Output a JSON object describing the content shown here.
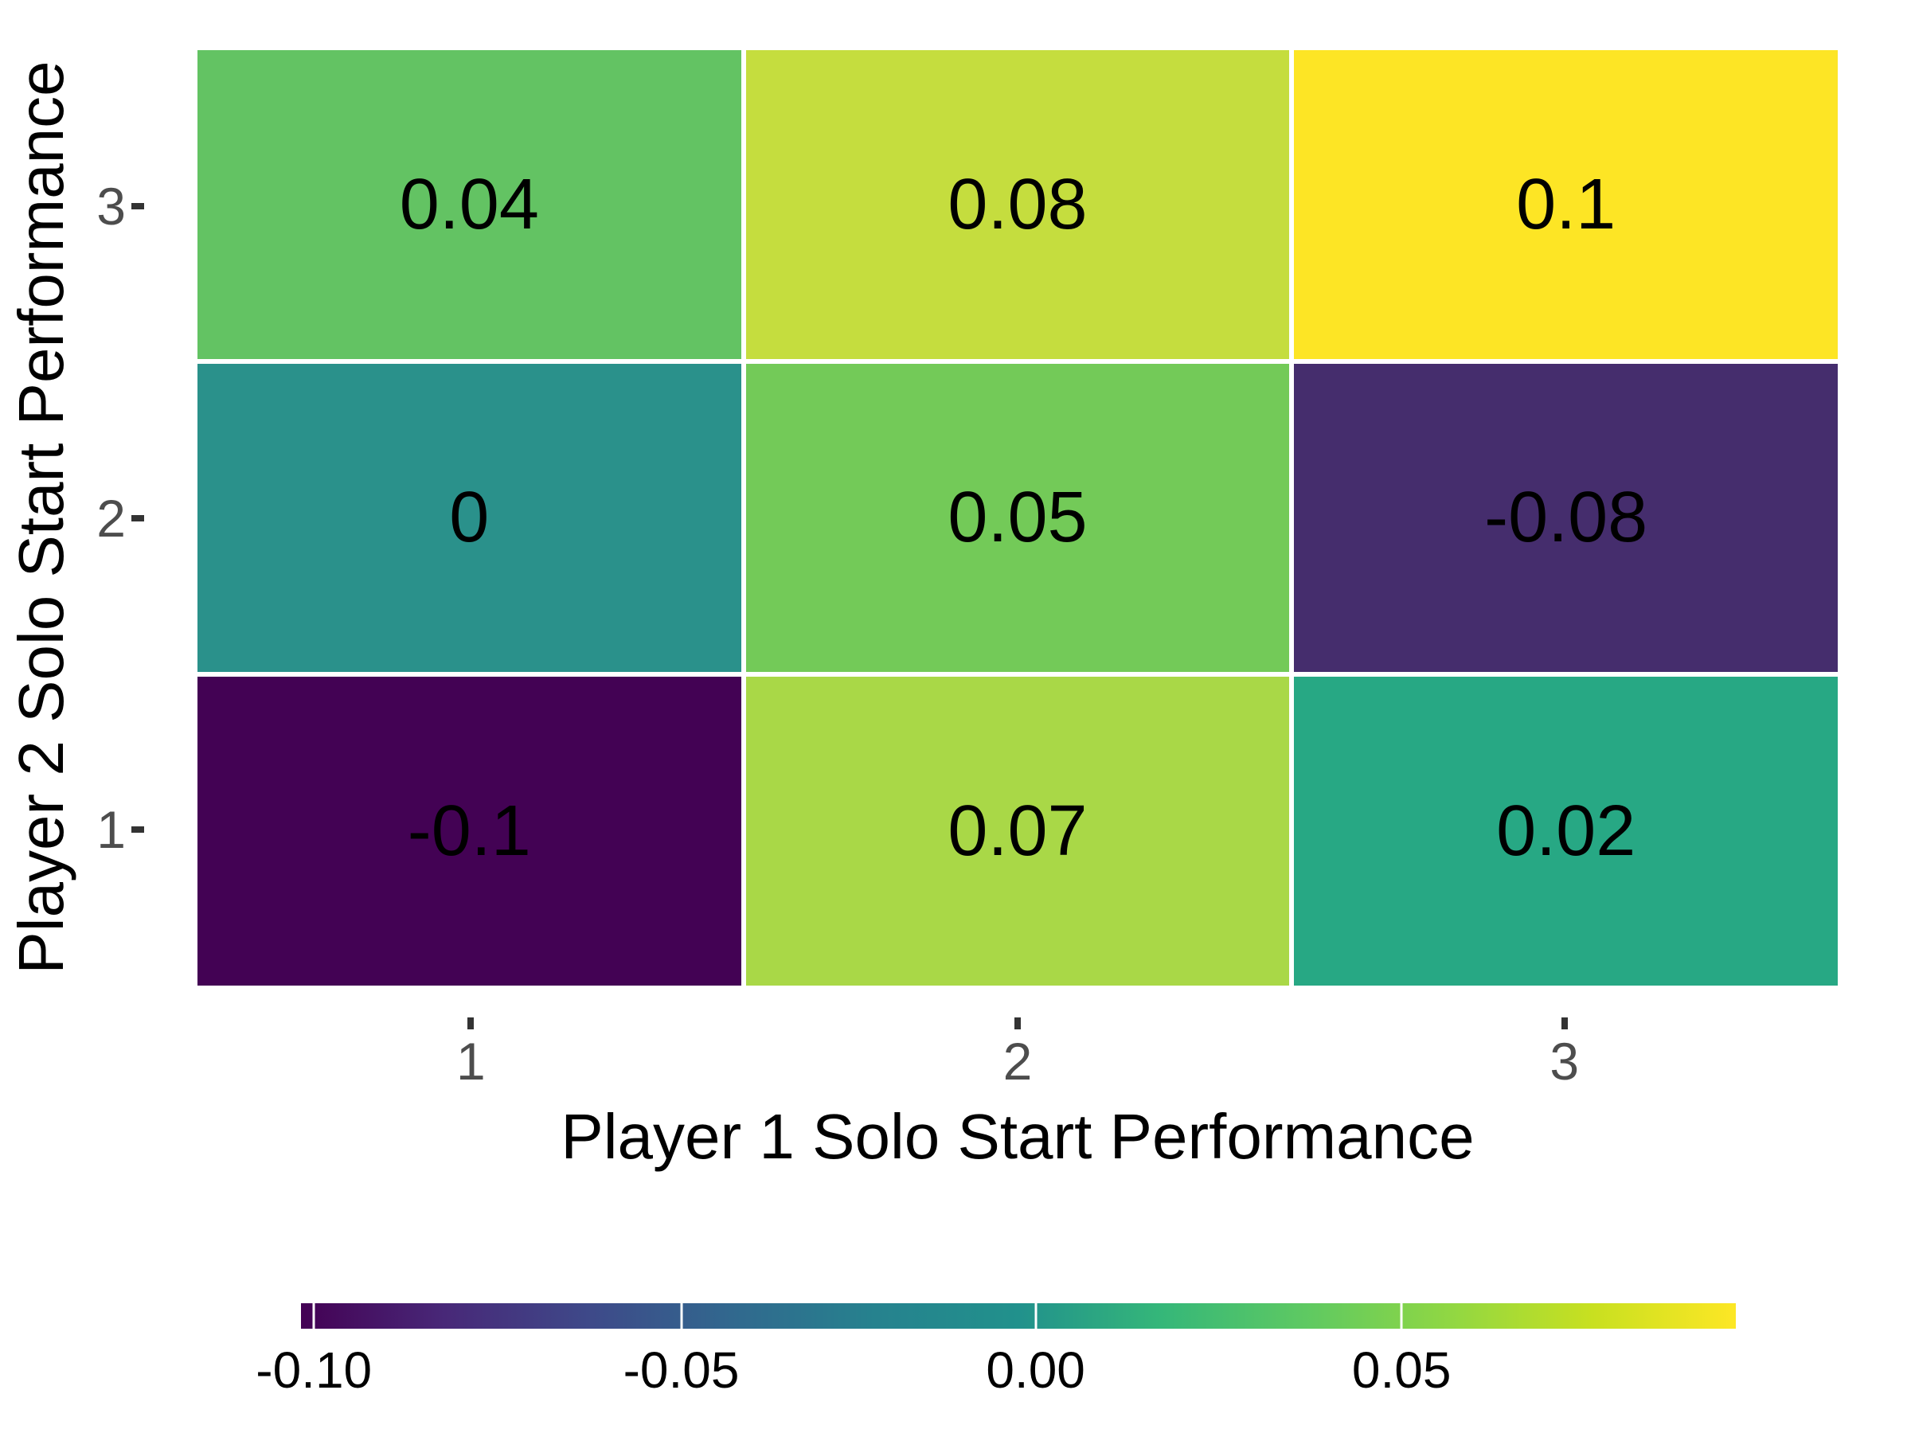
{
  "chart_data": {
    "type": "heatmap",
    "title": "",
    "xlabel": "Player 1 Solo Start Performance",
    "ylabel": "Player 2 Solo Start Performance",
    "x_ticks": [
      "1",
      "2",
      "3"
    ],
    "y_ticks_top_to_bottom": [
      "3",
      "2",
      "1"
    ],
    "xlim": [
      0.5,
      3.5
    ],
    "ylim": [
      0.5,
      3.5
    ],
    "fill_domain": [
      -0.1,
      0.1
    ],
    "grid": false,
    "legend_position": "bottom",
    "cells": [
      {
        "x": 1,
        "y": 3,
        "value": 0.04,
        "label": "0.04",
        "color": "#63c363"
      },
      {
        "x": 2,
        "y": 3,
        "value": 0.08,
        "label": "0.08",
        "color": "#c5dd3e"
      },
      {
        "x": 3,
        "y": 3,
        "value": 0.1,
        "label": "0.1",
        "color": "#fde525"
      },
      {
        "x": 1,
        "y": 2,
        "value": 0,
        "label": "0",
        "color": "#2a918b"
      },
      {
        "x": 2,
        "y": 2,
        "value": 0.05,
        "label": "0.05",
        "color": "#73ca58"
      },
      {
        "x": 3,
        "y": 2,
        "value": -0.08,
        "label": "-0.08",
        "color": "#452d6d"
      },
      {
        "x": 1,
        "y": 1,
        "value": -0.1,
        "label": "-0.1",
        "color": "#430254"
      },
      {
        "x": 2,
        "y": 1,
        "value": 0.07,
        "label": "0.07",
        "color": "#a9d847"
      },
      {
        "x": 3,
        "y": 1,
        "value": 0.02,
        "label": "0.02",
        "color": "#27a884"
      }
    ],
    "colorbar": {
      "ticks": [
        {
          "label": "-0.10",
          "pos": 0.009
        },
        {
          "label": "-0.05",
          "pos": 0.265
        },
        {
          "label": "0.00",
          "pos": 0.512
        },
        {
          "label": "0.05",
          "pos": 0.767
        }
      ],
      "palette": [
        "#440154",
        "#482878",
        "#3e4989",
        "#31688e",
        "#26828e",
        "#21918c",
        "#35b779",
        "#5ec962",
        "#90d743",
        "#c8e020",
        "#fde725"
      ]
    },
    "colors": {
      "cell_label": "#000000",
      "axis_title": "#000000",
      "tick_label": "#4d4d4d",
      "tick_mark": "#333333",
      "grid_gap": "#ffffff"
    }
  }
}
